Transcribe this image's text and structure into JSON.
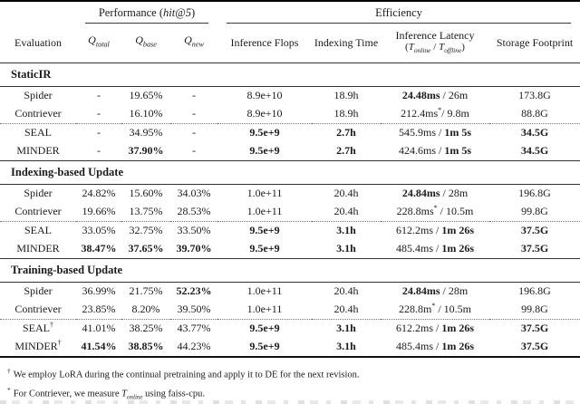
{
  "header": {
    "evaluation": "Evaluation",
    "performance_group": {
      "prefix": "Performance (",
      "math": "hit@5",
      "suffix": ")"
    },
    "efficiency_group": "Efficiency",
    "q_cols": [
      {
        "symbol": "Q",
        "sub": "total"
      },
      {
        "symbol": "Q",
        "sub": "base"
      },
      {
        "symbol": "Q",
        "sub": "new"
      }
    ],
    "efficiency_cols": [
      "Inference Flops",
      "Indexing Time",
      "Storage Footprint"
    ],
    "latency_col": {
      "line1": "Inference Latency",
      "open": "(",
      "t1": "T",
      "t1sub": "online",
      "slash": " / ",
      "t2": "T",
      "t2sub": "offline",
      "close": ")"
    }
  },
  "sections": [
    {
      "title": "StaticIR",
      "rows": [
        {
          "name": [
            {
              "t": "Spider"
            }
          ],
          "dotted_after": false,
          "cells": [
            [
              {
                "t": "-"
              }
            ],
            [
              {
                "t": "19.65%"
              }
            ],
            [
              {
                "t": "-"
              }
            ],
            [
              {
                "t": "8.9e+10"
              }
            ],
            [
              {
                "t": "18.9h"
              }
            ],
            [
              {
                "t": "24.48ms",
                "b": true
              },
              {
                "t": " / 26m"
              }
            ],
            [
              {
                "t": "173.8G"
              }
            ]
          ]
        },
        {
          "name": [
            {
              "t": "Contriever"
            }
          ],
          "dotted_after": true,
          "cells": [
            [
              {
                "t": "-"
              }
            ],
            [
              {
                "t": "16.10%"
              }
            ],
            [
              {
                "t": "-"
              }
            ],
            [
              {
                "t": "8.9e+10"
              }
            ],
            [
              {
                "t": "18.9h"
              }
            ],
            [
              {
                "t": "212.4ms"
              },
              {
                "t": "*",
                "sup": true
              },
              {
                "t": "/ 9.8m"
              }
            ],
            [
              {
                "t": "88.8G"
              }
            ]
          ]
        },
        {
          "name": [
            {
              "t": "SEAL"
            }
          ],
          "dotted_after": false,
          "cells": [
            [
              {
                "t": "-"
              }
            ],
            [
              {
                "t": "34.95%"
              }
            ],
            [
              {
                "t": "-"
              }
            ],
            [
              {
                "t": "9.5e+9",
                "b": true
              }
            ],
            [
              {
                "t": "2.7h",
                "b": true
              }
            ],
            [
              {
                "t": "545.9ms / "
              },
              {
                "t": "1m 5s",
                "b": true
              }
            ],
            [
              {
                "t": "34.5G",
                "b": true
              }
            ]
          ]
        },
        {
          "name": [
            {
              "t": "MINDER"
            }
          ],
          "dotted_after": false,
          "cells": [
            [
              {
                "t": "-"
              }
            ],
            [
              {
                "t": "37.90%",
                "b": true
              }
            ],
            [
              {
                "t": "-"
              }
            ],
            [
              {
                "t": "9.5e+9",
                "b": true
              }
            ],
            [
              {
                "t": "2.7h",
                "b": true
              }
            ],
            [
              {
                "t": "424.6ms / "
              },
              {
                "t": "1m 5s",
                "b": true
              }
            ],
            [
              {
                "t": "34.5G",
                "b": true
              }
            ]
          ]
        }
      ]
    },
    {
      "title": "Indexing-based Update",
      "rows": [
        {
          "name": [
            {
              "t": "Spider"
            }
          ],
          "dotted_after": false,
          "cells": [
            [
              {
                "t": "24.82%"
              }
            ],
            [
              {
                "t": "15.60%"
              }
            ],
            [
              {
                "t": "34.03%"
              }
            ],
            [
              {
                "t": "1.0e+11"
              }
            ],
            [
              {
                "t": "20.4h"
              }
            ],
            [
              {
                "t": "24.84ms",
                "b": true
              },
              {
                "t": " / 28m"
              }
            ],
            [
              {
                "t": "196.8G"
              }
            ]
          ]
        },
        {
          "name": [
            {
              "t": "Contriever"
            }
          ],
          "dotted_after": true,
          "cells": [
            [
              {
                "t": "19.66%"
              }
            ],
            [
              {
                "t": "13.75%"
              }
            ],
            [
              {
                "t": "28.53%"
              }
            ],
            [
              {
                "t": "1.0e+11"
              }
            ],
            [
              {
                "t": "20.4h"
              }
            ],
            [
              {
                "t": "228.8ms"
              },
              {
                "t": "*",
                "sup": true
              },
              {
                "t": " / 10.5m"
              }
            ],
            [
              {
                "t": "99.8G"
              }
            ]
          ]
        },
        {
          "name": [
            {
              "t": "SEAL"
            }
          ],
          "dotted_after": false,
          "cells": [
            [
              {
                "t": "33.05%"
              }
            ],
            [
              {
                "t": "32.75%"
              }
            ],
            [
              {
                "t": "33.50%"
              }
            ],
            [
              {
                "t": "9.5e+9",
                "b": true
              }
            ],
            [
              {
                "t": "3.1h",
                "b": true
              }
            ],
            [
              {
                "t": "612.2ms / "
              },
              {
                "t": "1m 26s",
                "b": true
              }
            ],
            [
              {
                "t": "37.5G",
                "b": true
              }
            ]
          ]
        },
        {
          "name": [
            {
              "t": "MINDER"
            }
          ],
          "dotted_after": false,
          "cells": [
            [
              {
                "t": "38.47%",
                "b": true
              }
            ],
            [
              {
                "t": "37.65%",
                "b": true
              }
            ],
            [
              {
                "t": "39.70%",
                "b": true
              }
            ],
            [
              {
                "t": "9.5e+9",
                "b": true
              }
            ],
            [
              {
                "t": "3.1h",
                "b": true
              }
            ],
            [
              {
                "t": "485.4ms / "
              },
              {
                "t": "1m 26s",
                "b": true
              }
            ],
            [
              {
                "t": "37.5G",
                "b": true
              }
            ]
          ]
        }
      ]
    },
    {
      "title": "Training-based Update",
      "rows": [
        {
          "name": [
            {
              "t": "Spider"
            }
          ],
          "dotted_after": false,
          "cells": [
            [
              {
                "t": "36.99%"
              }
            ],
            [
              {
                "t": "21.75%"
              }
            ],
            [
              {
                "t": "52.23%",
                "b": true
              }
            ],
            [
              {
                "t": "1.0e+11"
              }
            ],
            [
              {
                "t": "20.4h"
              }
            ],
            [
              {
                "t": "24.84ms",
                "b": true
              },
              {
                "t": " / 28m"
              }
            ],
            [
              {
                "t": "196.8G"
              }
            ]
          ]
        },
        {
          "name": [
            {
              "t": "Contriever"
            }
          ],
          "dotted_after": true,
          "cells": [
            [
              {
                "t": "23.85%"
              }
            ],
            [
              {
                "t": "8.20%"
              }
            ],
            [
              {
                "t": "39.50%"
              }
            ],
            [
              {
                "t": "1.0e+11"
              }
            ],
            [
              {
                "t": "20.4h"
              }
            ],
            [
              {
                "t": "228.8m"
              },
              {
                "t": "*",
                "sup": true
              },
              {
                "t": " / 10.5m"
              }
            ],
            [
              {
                "t": "99.8G"
              }
            ]
          ]
        },
        {
          "name": [
            {
              "t": "SEAL"
            },
            {
              "t": "†",
              "sup": true
            }
          ],
          "dotted_after": false,
          "cells": [
            [
              {
                "t": "41.01%"
              }
            ],
            [
              {
                "t": "38.25%"
              }
            ],
            [
              {
                "t": "43.77%"
              }
            ],
            [
              {
                "t": "9.5e+9",
                "b": true
              }
            ],
            [
              {
                "t": "3.1h",
                "b": true
              }
            ],
            [
              {
                "t": "612.2ms / "
              },
              {
                "t": "1m 26s",
                "b": true
              }
            ],
            [
              {
                "t": "37.5G",
                "b": true
              }
            ]
          ]
        },
        {
          "name": [
            {
              "t": "MINDER"
            },
            {
              "t": "†",
              "sup": true
            }
          ],
          "dotted_after": false,
          "cells": [
            [
              {
                "t": "41.54%",
                "b": true
              }
            ],
            [
              {
                "t": "38.85%",
                "b": true
              }
            ],
            [
              {
                "t": "44.23%"
              }
            ],
            [
              {
                "t": "9.5e+9",
                "b": true
              }
            ],
            [
              {
                "t": "3.1h",
                "b": true
              }
            ],
            [
              {
                "t": "485.4ms / "
              },
              {
                "t": "1m 26s",
                "b": true
              }
            ],
            [
              {
                "t": "37.5G",
                "b": true
              }
            ]
          ]
        }
      ]
    }
  ],
  "footnotes": [
    {
      "marker": "†",
      "text": "We employ LoRA during the continual pretraining and apply it to DE for the next revision."
    },
    {
      "marker": "*",
      "pre": "For Contriever, we measure ",
      "sym": "T",
      "sub": "online",
      "post": " using faiss-cpu."
    }
  ]
}
